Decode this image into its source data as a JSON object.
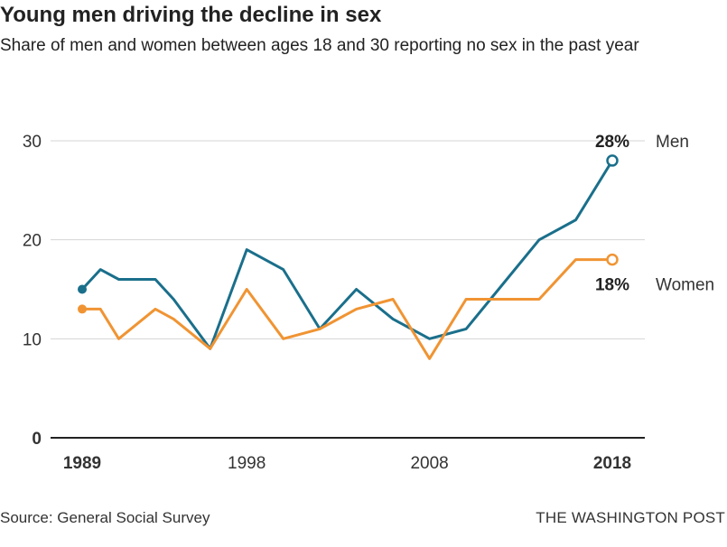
{
  "header": {
    "title": "Young men driving the decline in sex",
    "subtitle": "Share of men and women between ages 18 and 30 reporting no sex in the past year"
  },
  "footer": {
    "source": "Source: General Social Survey",
    "credit": "THE WASHINGTON POST"
  },
  "chart_data": {
    "type": "line",
    "title": "Young men driving the decline in sex",
    "subtitle": "Share of men and women between ages 18 and 30 reporting no sex in the past year",
    "xlabel": "",
    "ylabel": "",
    "xlim": [
      1989,
      2018
    ],
    "ylim": [
      0,
      30
    ],
    "grid": true,
    "y_ticks": [
      {
        "value": 0,
        "label": "0"
      },
      {
        "value": 10,
        "label": "10"
      },
      {
        "value": 20,
        "label": "20"
      },
      {
        "value": 30,
        "label": "30"
      }
    ],
    "x_ticks": [
      {
        "value": 1989,
        "label": "1989"
      },
      {
        "value": 1998,
        "label": "1998"
      },
      {
        "value": 2008,
        "label": "2008"
      },
      {
        "value": 2018,
        "label": "2018"
      }
    ],
    "series": [
      {
        "name": "Men",
        "color": "#1a6f8b",
        "end_label": "28%",
        "x": [
          1989,
          1990,
          1991,
          1993,
          1994,
          1996,
          1998,
          2000,
          2002,
          2004,
          2006,
          2008,
          2010,
          2012,
          2014,
          2016,
          2018
        ],
        "values": [
          15,
          17,
          16,
          16,
          14,
          9,
          19,
          17,
          11,
          15,
          12,
          10,
          11,
          15.5,
          20,
          22,
          28
        ]
      },
      {
        "name": "Women",
        "color": "#f09433",
        "end_label": "18%",
        "x": [
          1989,
          1990,
          1991,
          1993,
          1994,
          1996,
          1998,
          2000,
          2002,
          2004,
          2006,
          2008,
          2010,
          2012,
          2014,
          2016,
          2018
        ],
        "values": [
          13,
          13,
          10,
          13,
          12,
          9,
          15,
          10,
          11,
          13,
          14,
          8,
          14,
          14,
          14,
          18,
          18
        ]
      }
    ]
  }
}
